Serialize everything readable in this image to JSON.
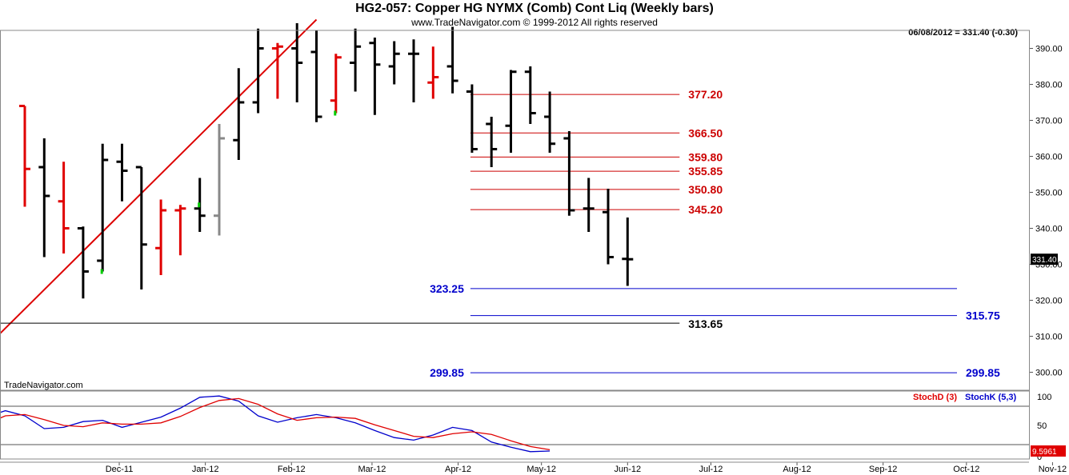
{
  "header": {
    "title": "HG2-057:  Copper HG NYMX (Comb) Cont Liq  (Weekly bars)",
    "subtitle": "www.TradeNavigator.com © 1999-2012 All rights reserved",
    "price_readout": "06/08/2012 = 331.40 (-0.30)",
    "watermark": "TradeNavigator.com"
  },
  "colors": {
    "up_bar": "#000000",
    "down_bar": "#e00000",
    "gray_bar": "#888888",
    "green_tick": "#00cc00",
    "fib_line": "#cc0000",
    "blue_level": "#0000cc",
    "black_level": "#000000",
    "stoch_d": "#e00000",
    "stoch_k": "#0000cc"
  },
  "chart_data": [
    {
      "type": "ohlc",
      "title": "HG2-057:  Copper HG NYMX (Comb) Cont Liq  (Weekly bars)",
      "ylim": [
        295,
        395
      ],
      "y_ticks": [
        300,
        310,
        320,
        330,
        340,
        350,
        360,
        370,
        380,
        390
      ],
      "y_tick_labels": [
        "300.00",
        "310.00",
        "320.00",
        "330.00",
        "340.00",
        "350.00",
        "360.00",
        "370.00",
        "380.00",
        "390.00"
      ],
      "x_labels": [
        "Dec-11",
        "Jan-12",
        "Feb-12",
        "Mar-12",
        "Apr-12",
        "May-12",
        "Jun-12",
        "Jul-12",
        "Aug-12",
        "Sep-12",
        "Oct-12",
        "Nov-12"
      ],
      "last_price_label": "331.40",
      "bars": [
        {
          "week": "2011-10-28",
          "o": 374,
          "h": 374,
          "l": 346,
          "c": 356.5,
          "color": "down"
        },
        {
          "week": "2011-11-04",
          "o": 357,
          "h": 365,
          "l": 332,
          "c": 349,
          "color": "up"
        },
        {
          "week": "2011-11-11",
          "o": 347.5,
          "h": 358.5,
          "l": 333,
          "c": 340,
          "color": "down"
        },
        {
          "week": "2011-11-18",
          "o": 340,
          "h": 340.5,
          "l": 320.5,
          "c": 328,
          "color": "up"
        },
        {
          "week": "2011-11-25",
          "o": 331,
          "h": 363.5,
          "l": 328,
          "c": 359,
          "color": "up"
        },
        {
          "week": "2011-12-02",
          "o": 358.5,
          "h": 363.5,
          "l": 347.5,
          "c": 356,
          "color": "up"
        },
        {
          "week": "2011-12-09",
          "o": 357,
          "h": 357,
          "l": 323,
          "c": 335.5,
          "color": "up"
        },
        {
          "week": "2011-12-16",
          "o": 334.5,
          "h": 348,
          "l": 327,
          "c": 345,
          "color": "down"
        },
        {
          "week": "2011-12-23",
          "o": 345,
          "h": 346.5,
          "l": 332.5,
          "c": 345.5,
          "color": "down"
        },
        {
          "week": "2011-12-30",
          "o": 345.5,
          "h": 354,
          "l": 339,
          "c": 343.5,
          "color": "up"
        },
        {
          "week": "2012-01-06",
          "o": 343.5,
          "h": 369,
          "l": 338,
          "c": 365,
          "color": "gray"
        },
        {
          "week": "2012-01-13",
          "o": 364.5,
          "h": 384.5,
          "l": 359,
          "c": 375,
          "color": "up"
        },
        {
          "week": "2012-01-20",
          "o": 375,
          "h": 395.5,
          "l": 372,
          "c": 390,
          "color": "up"
        },
        {
          "week": "2012-01-27",
          "o": 390,
          "h": 391.5,
          "l": 376,
          "c": 390.5,
          "color": "down"
        },
        {
          "week": "2012-02-03",
          "o": 390,
          "h": 397,
          "l": 375,
          "c": 386,
          "color": "up"
        },
        {
          "week": "2012-02-10",
          "o": 389,
          "h": 395,
          "l": 369.5,
          "c": 371,
          "color": "up"
        },
        {
          "week": "2012-02-17",
          "o": 375.5,
          "h": 388.5,
          "l": 372,
          "c": 387.5,
          "color": "down"
        },
        {
          "week": "2012-02-24",
          "o": 386,
          "h": 395.5,
          "l": 378,
          "c": 390.5,
          "color": "up"
        },
        {
          "week": "2012-03-02",
          "o": 391.5,
          "h": 393,
          "l": 371.5,
          "c": 385.5,
          "color": "up"
        },
        {
          "week": "2012-03-09",
          "o": 385,
          "h": 392,
          "l": 380,
          "c": 388.5,
          "color": "up"
        },
        {
          "week": "2012-03-16",
          "o": 388.5,
          "h": 392.5,
          "l": 375,
          "c": 388.5,
          "color": "up"
        },
        {
          "week": "2012-03-23",
          "o": 380.5,
          "h": 390.5,
          "l": 376,
          "c": 382,
          "color": "down"
        },
        {
          "week": "2012-03-30",
          "o": 385,
          "h": 396,
          "l": 377.5,
          "c": 381,
          "color": "up"
        },
        {
          "week": "2012-04-06",
          "o": 378,
          "h": 380,
          "l": 361,
          "c": 362,
          "color": "up"
        },
        {
          "week": "2012-04-13",
          "o": 369,
          "h": 371,
          "l": 357,
          "c": 362,
          "color": "up"
        },
        {
          "week": "2012-04-20",
          "o": 368.5,
          "h": 384,
          "l": 361,
          "c": 383.5,
          "color": "up"
        },
        {
          "week": "2012-04-27",
          "o": 383.5,
          "h": 385,
          "l": 369,
          "c": 372,
          "color": "up"
        },
        {
          "week": "2012-05-04",
          "o": 371,
          "h": 378,
          "l": 361,
          "c": 363.5,
          "color": "up"
        },
        {
          "week": "2012-05-11",
          "o": 365,
          "h": 367,
          "l": 343.5,
          "c": 345,
          "color": "up"
        },
        {
          "week": "2012-05-18",
          "o": 345.5,
          "h": 354,
          "l": 339,
          "c": 345.5,
          "color": "up"
        },
        {
          "week": "2012-05-25",
          "o": 344.5,
          "h": 351,
          "l": 330,
          "c": 332,
          "color": "up"
        },
        {
          "week": "2012-06-01",
          "o": 331.5,
          "h": 343,
          "l": 324,
          "c": 331.4,
          "color": "up"
        }
      ],
      "green_ticks": [
        {
          "week": "2011-11-25",
          "price": 328
        },
        {
          "week": "2011-12-30",
          "price": 346.5
        },
        {
          "week": "2012-02-17",
          "price": 372
        }
      ],
      "fib_levels": [
        {
          "label": "377.20",
          "value": 377.2
        },
        {
          "label": "366.50",
          "value": 366.5
        },
        {
          "label": "359.80",
          "value": 359.8
        },
        {
          "label": "355.85",
          "value": 355.85
        },
        {
          "label": "350.80",
          "value": 350.8
        },
        {
          "label": "345.20",
          "value": 345.2
        }
      ],
      "blue_levels": [
        {
          "label": "323.25",
          "value": 323.25,
          "label_side": "left"
        },
        {
          "label": "315.75",
          "value": 315.75,
          "label_side": "right"
        },
        {
          "label": "299.85",
          "value": 299.85,
          "label_side": "both"
        }
      ],
      "black_levels": [
        {
          "label": "313.65",
          "value": 313.65
        }
      ],
      "trendline": {
        "from": {
          "week": "2011-10-07",
          "price": 301.5
        },
        "to": {
          "week": "2012-02-10",
          "price": 398
        }
      }
    },
    {
      "type": "line",
      "legend": [
        {
          "name": "StochD (3)",
          "color": "#e00000"
        },
        {
          "name": "StochK (5,3)",
          "color": "#0000cc"
        }
      ],
      "ylim": [
        0,
        100
      ],
      "y_tick_labels": [
        "100",
        "50",
        "0"
      ],
      "reference_lines": [
        80,
        20
      ],
      "last_value_label": "9.5961",
      "series": [
        {
          "name": "StochK (5,3)",
          "points": [
            [
              -2,
              63
            ],
            [
              -1,
              73
            ],
            [
              0,
              65
            ],
            [
              1,
              45
            ],
            [
              2,
              47
            ],
            [
              3,
              56
            ],
            [
              4,
              58
            ],
            [
              5,
              47
            ],
            [
              6,
              55
            ],
            [
              7,
              63
            ],
            [
              8,
              77
            ],
            [
              9,
              94
            ],
            [
              10,
              96
            ],
            [
              11,
              88
            ],
            [
              12,
              65
            ],
            [
              13,
              55
            ],
            [
              14,
              62
            ],
            [
              15,
              67
            ],
            [
              16,
              62
            ],
            [
              17,
              54
            ],
            [
              18,
              42
            ],
            [
              19,
              31
            ],
            [
              20,
              27
            ],
            [
              21,
              35
            ],
            [
              22,
              47
            ],
            [
              23,
              42
            ],
            [
              24,
              24
            ],
            [
              25,
              16
            ],
            [
              26,
              9
            ],
            [
              27,
              10
            ]
          ]
        },
        {
          "name": "StochD (3)",
          "points": [
            [
              -2,
              52
            ],
            [
              -1,
              65
            ],
            [
              0,
              67
            ],
            [
              1,
              59
            ],
            [
              2,
              50
            ],
            [
              3,
              48
            ],
            [
              4,
              54
            ],
            [
              5,
              52
            ],
            [
              6,
              52
            ],
            [
              7,
              54
            ],
            [
              8,
              64
            ],
            [
              9,
              78
            ],
            [
              10,
              89
            ],
            [
              11,
              92
            ],
            [
              12,
              83
            ],
            [
              13,
              68
            ],
            [
              14,
              58
            ],
            [
              15,
              62
            ],
            [
              16,
              63
            ],
            [
              17,
              61
            ],
            [
              18,
              51
            ],
            [
              19,
              42
            ],
            [
              20,
              33
            ],
            [
              21,
              31
            ],
            [
              22,
              37
            ],
            [
              23,
              40
            ],
            [
              24,
              36
            ],
            [
              25,
              26
            ],
            [
              26,
              17
            ],
            [
              27,
              12
            ]
          ]
        }
      ]
    }
  ]
}
